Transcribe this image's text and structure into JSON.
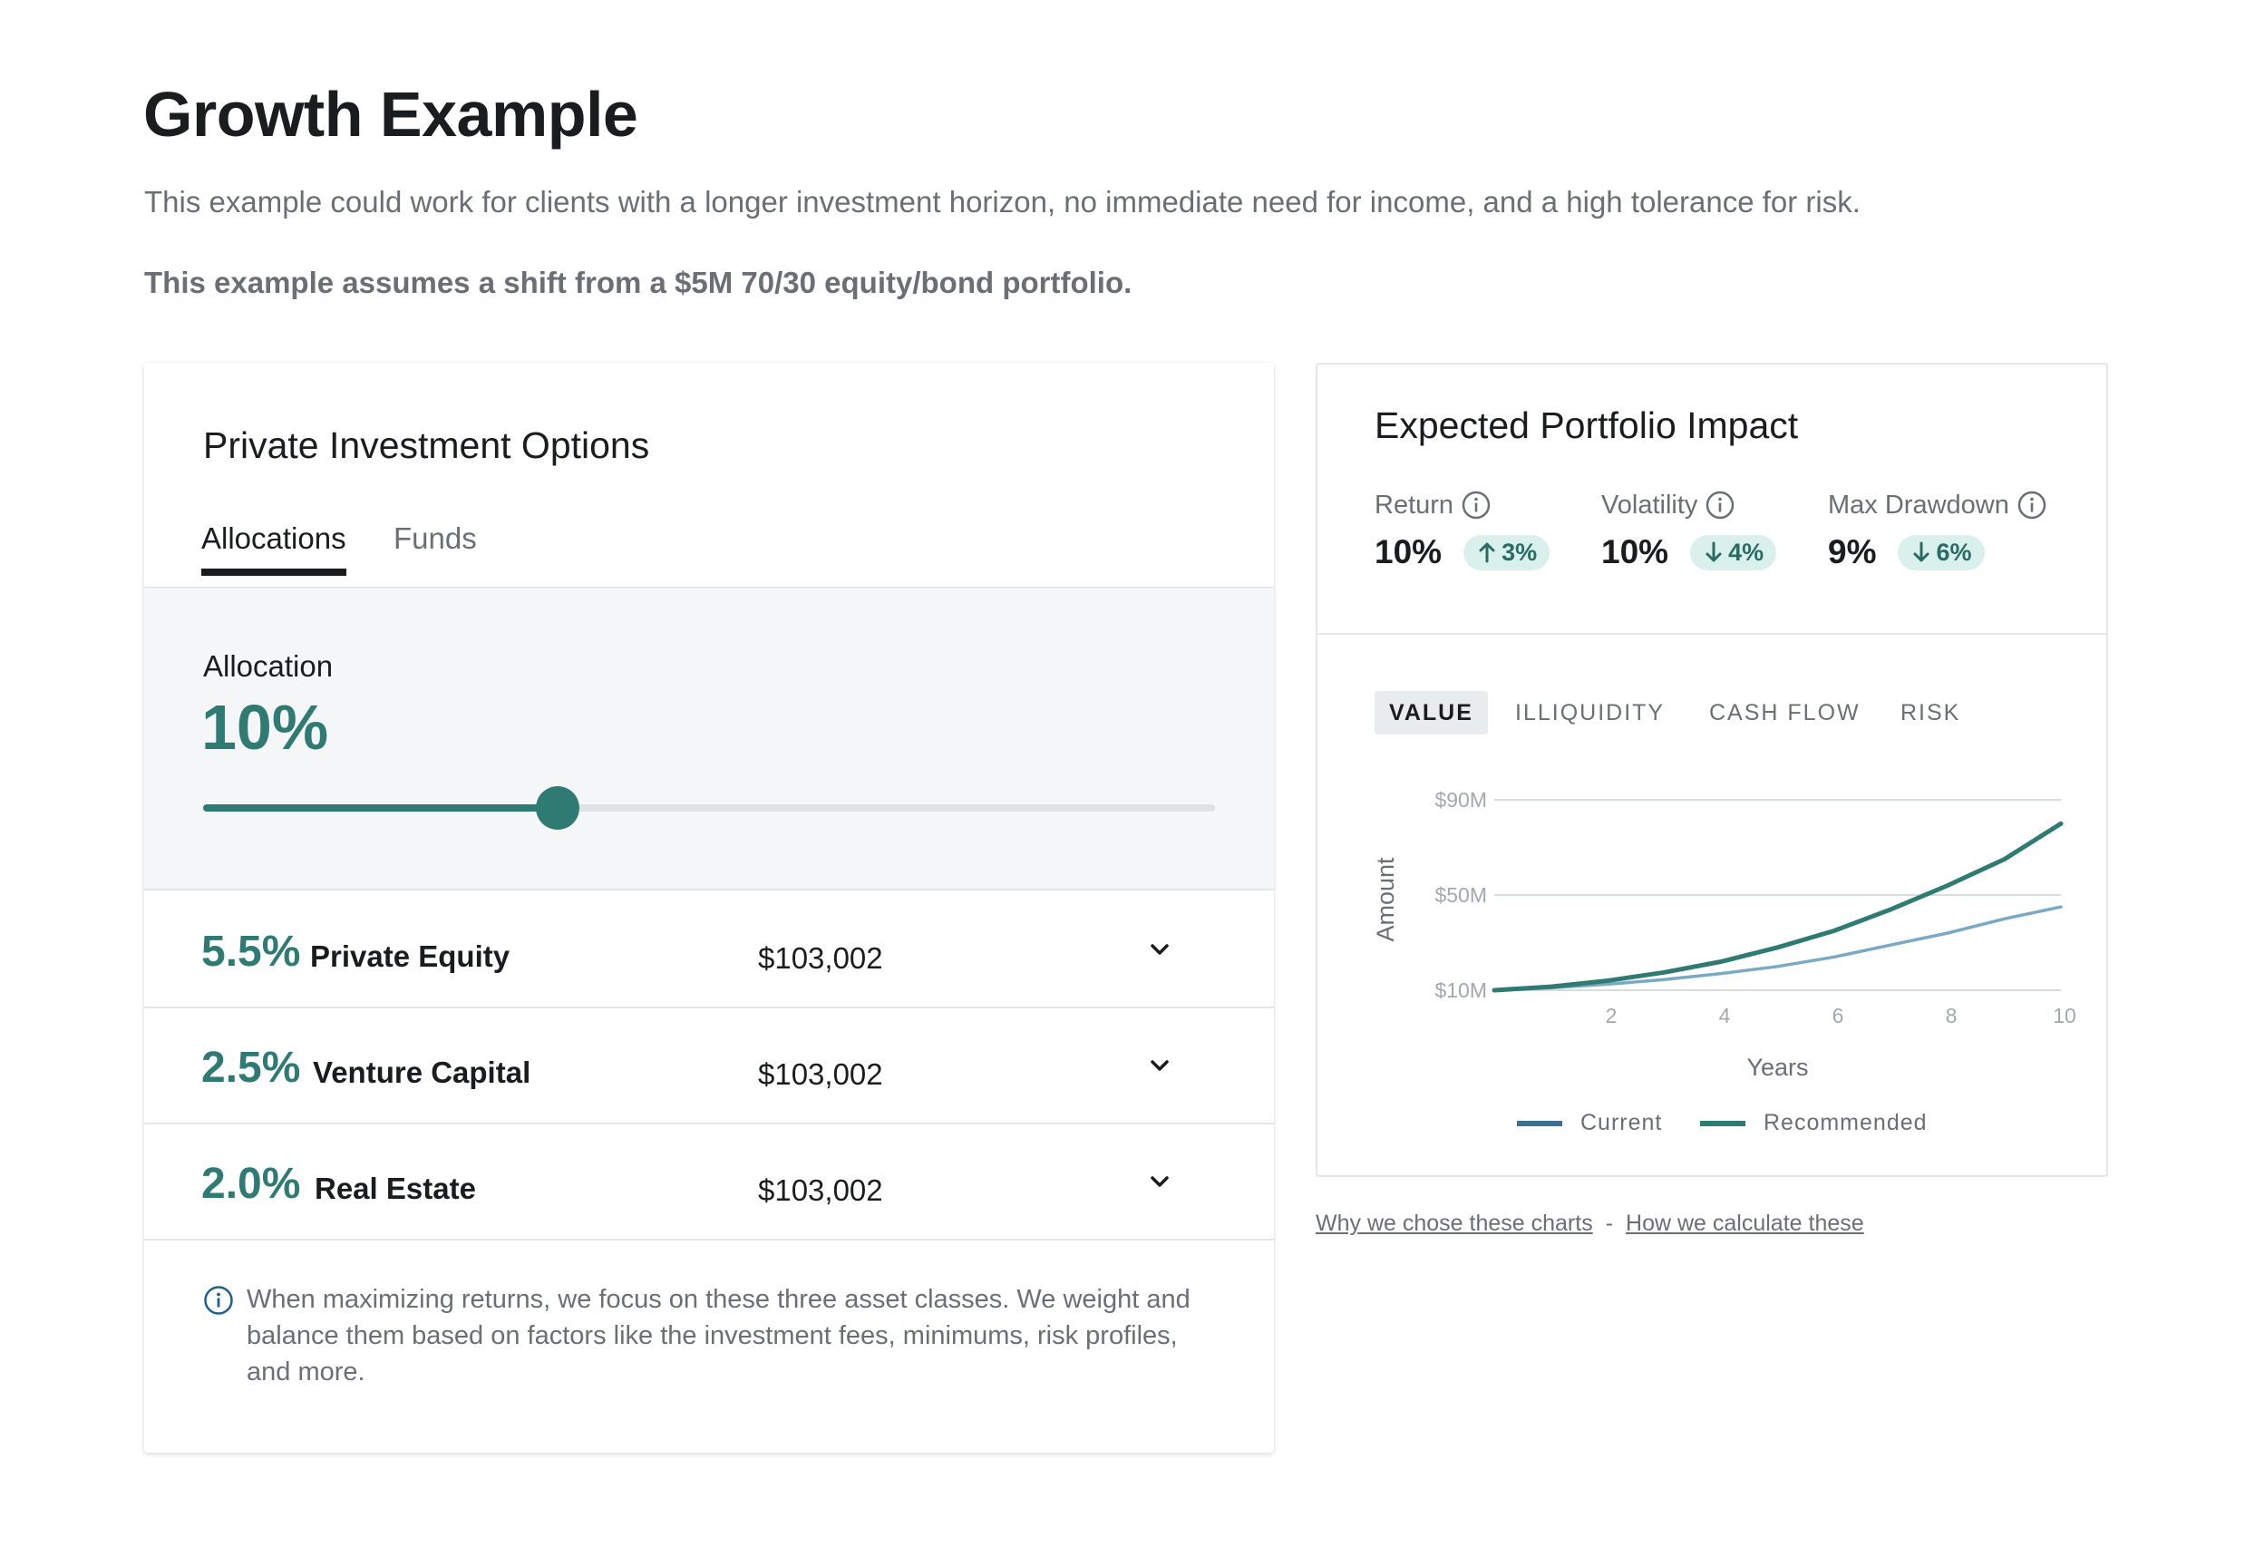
{
  "page": {
    "title": "Growth Example",
    "description": "This example could work for clients with a longer investment horizon, no immediate need for income, and a high tolerance for risk.",
    "note": "This example assumes a shift from a $5M 70/30 equity/bond portfolio."
  },
  "options_card": {
    "title": "Private Investment Options",
    "tabs": [
      "Allocations",
      "Funds"
    ],
    "active_tab": "Allocations",
    "allocation_label": "Allocation",
    "allocation_value": "10%",
    "allocation_slider_fraction": 0.35,
    "rows": [
      {
        "pct": "5.5%",
        "name": "Private Equity",
        "amount": "$103,002"
      },
      {
        "pct": "2.5%",
        "name": "Venture Capital",
        "amount": "$103,002"
      },
      {
        "pct": "2.0%",
        "name": "Real Estate",
        "amount": "$103,002"
      }
    ],
    "info_text": "When maximizing returns, we focus on these three asset classes. We weight and balance them based on factors like the investment fees, minimums, risk profiles, and more."
  },
  "impact_card": {
    "title": "Expected Portfolio Impact",
    "metrics": [
      {
        "label": "Return",
        "value": "10%",
        "change": "3%",
        "direction": "up"
      },
      {
        "label": "Volatility",
        "value": "10%",
        "change": "4%",
        "direction": "down"
      },
      {
        "label": "Max Drawdown",
        "value": "9%",
        "change": "6%",
        "direction": "down"
      }
    ],
    "chart_tabs": [
      "VALUE",
      "ILLIQUIDITY",
      "CASH FLOW",
      "RISK"
    ],
    "active_chart_tab": "VALUE"
  },
  "links": {
    "why": "Why we chose these charts",
    "separator": "-",
    "how": "How we calculate these"
  },
  "colors": {
    "accent": "#2f7b73",
    "current_series": "#7aa9c4",
    "current_legend": "#3e6f93",
    "recommended_series": "#2f7b73",
    "badge_bg": "#d9f0ec"
  },
  "chart_data": {
    "type": "line",
    "xlabel": "Years",
    "ylabel": "Amount",
    "xlim": [
      0,
      10
    ],
    "ylim": [
      10,
      90
    ],
    "x_ticks": [
      2,
      4,
      6,
      8,
      10
    ],
    "y_ticks": [
      {
        "value": 10,
        "label": "$10M"
      },
      {
        "value": 50,
        "label": "$50M"
      },
      {
        "value": 90,
        "label": "$90M"
      }
    ],
    "x": [
      0,
      1,
      2,
      3,
      4,
      5,
      6,
      7,
      8,
      9,
      10
    ],
    "series": [
      {
        "name": "Current",
        "values": [
          10,
          11,
          12.5,
          14.5,
          17,
          20,
          24,
          29,
          34,
          40,
          45
        ]
      },
      {
        "name": "Recommended",
        "values": [
          10,
          11.5,
          14,
          17.5,
          22,
          28,
          35,
          44,
          54,
          65,
          80
        ]
      }
    ],
    "legend_position": "bottom",
    "grid": true
  }
}
